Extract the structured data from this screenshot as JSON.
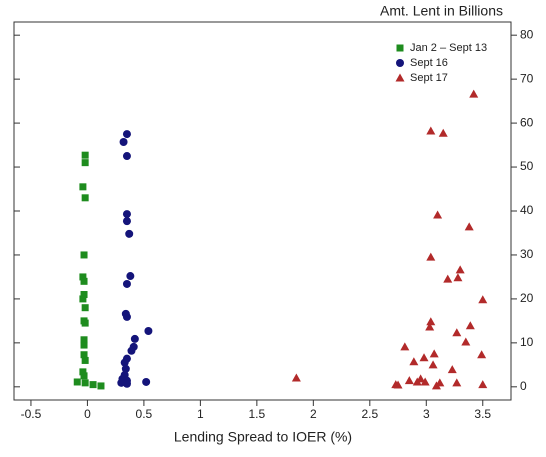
{
  "chart_data": {
    "type": "scatter",
    "title": "Amt. Lent in Billions",
    "x_label": "Lending Spread to IOER (%)",
    "xlim": [
      -0.65,
      3.75
    ],
    "xticks": [
      -0.5,
      0,
      0.5,
      1,
      1.5,
      2,
      2.5,
      3,
      3.5
    ],
    "ylim": [
      -3,
      83
    ],
    "yticks": [
      0,
      10,
      20,
      30,
      40,
      50,
      60,
      70,
      80
    ],
    "legend": "upper right",
    "series": [
      {
        "name": "Jan 2 – Sept 13",
        "color": "#1e8c1e",
        "marker": "square",
        "x": [
          -0.02,
          -0.02,
          -0.04,
          -0.02,
          -0.03,
          -0.04,
          -0.03,
          -0.03,
          -0.04,
          -0.02,
          -0.03,
          -0.02,
          -0.03,
          -0.03,
          -0.03,
          -0.02,
          -0.04,
          -0.03,
          -0.09,
          -0.02,
          0.05,
          0.12
        ],
        "values": [
          52.7,
          51,
          45.5,
          43,
          30,
          25,
          24,
          21,
          20,
          18,
          15,
          14.5,
          10.7,
          9.5,
          7.3,
          6,
          3.4,
          2.5,
          1.1,
          0.9,
          0.5,
          0.2
        ]
      },
      {
        "name": "Sept 16",
        "color": "#14147a",
        "marker": "circle",
        "x": [
          0.35,
          0.32,
          0.35,
          0.35,
          0.35,
          0.37,
          0.38,
          0.35,
          0.34,
          0.35,
          0.54,
          0.42,
          0.41,
          0.39,
          0.35,
          0.33,
          0.34,
          0.33,
          0.31,
          0.35,
          0.52,
          0.3,
          0.35
        ],
        "values": [
          57.5,
          55.7,
          52.5,
          39.3,
          37.7,
          34.8,
          25.2,
          23.4,
          16.6,
          15.9,
          12.7,
          10.9,
          9.1,
          8.2,
          6.4,
          5.5,
          4.1,
          2.7,
          1.8,
          1.4,
          1.1,
          0.9,
          0.7
        ]
      },
      {
        "name": "Sept 17",
        "color": "#b22a2a",
        "marker": "triangle",
        "x": [
          3.42,
          3.04,
          3.15,
          3.1,
          3.38,
          3.04,
          3.3,
          3.28,
          3.19,
          3.5,
          3.04,
          3.39,
          3.03,
          3.27,
          3.35,
          2.81,
          3.07,
          3.49,
          2.98,
          2.89,
          3.06,
          3.23,
          1.85,
          2.95,
          2.85,
          2.92,
          2.99,
          3.12,
          3.27,
          2.73,
          3.09,
          3.5,
          2.75
        ],
        "values": [
          66.6,
          58.2,
          57.7,
          39.1,
          36.4,
          29.5,
          26.6,
          24.8,
          24.5,
          19.8,
          14.8,
          13.9,
          13.6,
          12.3,
          10.2,
          9.1,
          7.5,
          7.3,
          6.6,
          5.7,
          5.0,
          3.9,
          2.0,
          1.8,
          1.4,
          1.1,
          1.1,
          0.9,
          0.9,
          0.5,
          0.2,
          0.5,
          0.4
        ]
      }
    ]
  }
}
